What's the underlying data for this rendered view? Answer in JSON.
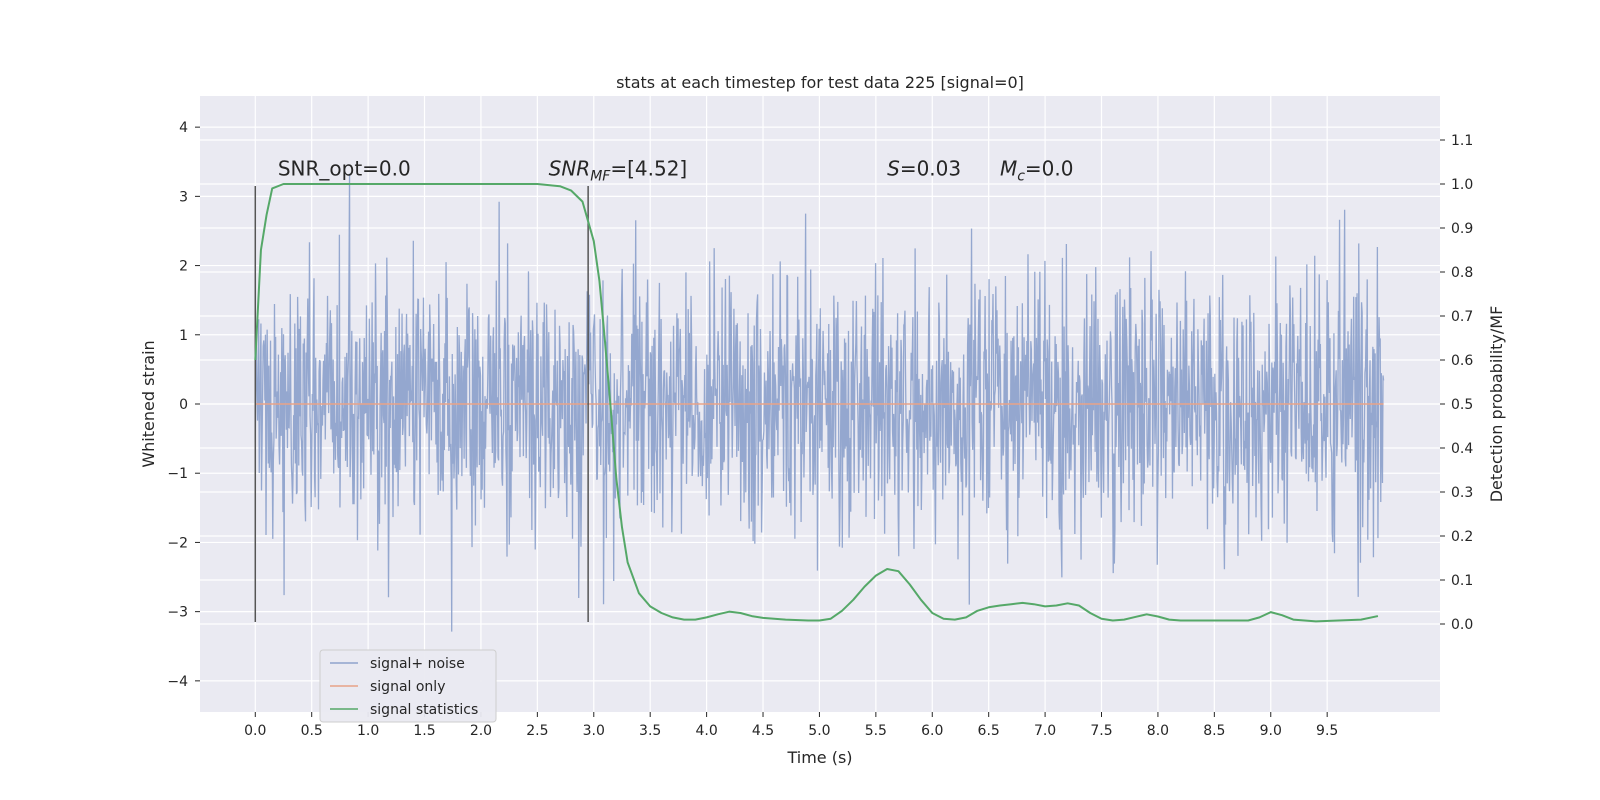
{
  "chart_data": {
    "type": "line",
    "title": "stats at each timestep for test data 225 [signal=0]",
    "xlabel": "Time (s)",
    "ylabel": "Whitened strain",
    "ylabel_right": "Detection probability/MF",
    "xlim": [
      -0.49,
      10.5
    ],
    "ylim": [
      -4.45,
      4.45
    ],
    "ylim_right": [
      -0.2,
      1.2
    ],
    "x_ticks": [
      0.0,
      0.5,
      1.0,
      1.5,
      2.0,
      2.5,
      3.0,
      3.5,
      4.0,
      4.5,
      5.0,
      5.5,
      6.0,
      6.5,
      7.0,
      7.5,
      8.0,
      8.5,
      9.0,
      9.5
    ],
    "y_ticks": [
      -4,
      -3,
      -2,
      -1,
      0,
      1,
      2,
      3,
      4
    ],
    "y_ticks_right": [
      0.0,
      0.1,
      0.2,
      0.3,
      0.4,
      0.5,
      0.6,
      0.7,
      0.8,
      0.9,
      1.0,
      1.1
    ],
    "grid": true,
    "legend_position": "bottom-left",
    "annotations": [
      {
        "text": "SNR_opt=0.0",
        "x": 0.2,
        "y": 3.3
      },
      {
        "text": "SNR_MF=[4.52]",
        "x": 2.6,
        "y": 3.3
      },
      {
        "text": "S=0.03",
        "x": 5.6,
        "y": 3.3
      },
      {
        "text": "M_c=0.0",
        "x": 6.6,
        "y": 3.3
      }
    ],
    "vlines": [
      0.0,
      2.95
    ],
    "vline_range": [
      -3.15,
      3.15
    ],
    "series": [
      {
        "name": "signal+ noise",
        "color": "#8fa3cc",
        "x_range": [
          0.0,
          10.0
        ],
        "num_samples": 2000,
        "noise_std": 0.95,
        "seed": 225
      },
      {
        "name": "signal only",
        "color": "#e8a288",
        "x": [
          0.0,
          10.0
        ],
        "y": [
          0.0,
          0.0
        ]
      },
      {
        "name": "signal statistics",
        "color": "#55a868",
        "axis": "right",
        "x": [
          0.0,
          0.05,
          0.1,
          0.15,
          0.25,
          0.5,
          1.0,
          1.5,
          2.0,
          2.5,
          2.7,
          2.8,
          2.9,
          3.0,
          3.05,
          3.1,
          3.15,
          3.2,
          3.25,
          3.3,
          3.4,
          3.5,
          3.6,
          3.7,
          3.8,
          3.9,
          4.0,
          4.1,
          4.2,
          4.3,
          4.4,
          4.5,
          4.7,
          4.9,
          5.0,
          5.1,
          5.2,
          5.3,
          5.4,
          5.5,
          5.6,
          5.7,
          5.8,
          5.9,
          6.0,
          6.1,
          6.2,
          6.3,
          6.4,
          6.5,
          6.6,
          6.7,
          6.8,
          6.9,
          7.0,
          7.1,
          7.2,
          7.3,
          7.4,
          7.5,
          7.6,
          7.7,
          7.8,
          7.9,
          8.0,
          8.1,
          8.2,
          8.4,
          8.6,
          8.8,
          8.9,
          9.0,
          9.1,
          9.2,
          9.4,
          9.6,
          9.8,
          9.95
        ],
        "y": [
          0.6,
          0.85,
          0.93,
          0.99,
          1.0,
          1.0,
          1.0,
          1.0,
          1.0,
          1.0,
          0.995,
          0.985,
          0.96,
          0.87,
          0.78,
          0.64,
          0.49,
          0.33,
          0.22,
          0.14,
          0.07,
          0.04,
          0.025,
          0.015,
          0.01,
          0.01,
          0.015,
          0.022,
          0.028,
          0.025,
          0.018,
          0.014,
          0.01,
          0.008,
          0.008,
          0.012,
          0.03,
          0.055,
          0.085,
          0.11,
          0.125,
          0.12,
          0.09,
          0.055,
          0.025,
          0.012,
          0.01,
          0.015,
          0.03,
          0.038,
          0.042,
          0.045,
          0.048,
          0.045,
          0.04,
          0.042,
          0.047,
          0.042,
          0.025,
          0.012,
          0.008,
          0.01,
          0.016,
          0.022,
          0.017,
          0.01,
          0.008,
          0.008,
          0.008,
          0.008,
          0.015,
          0.027,
          0.02,
          0.01,
          0.006,
          0.008,
          0.01,
          0.018
        ]
      }
    ]
  }
}
